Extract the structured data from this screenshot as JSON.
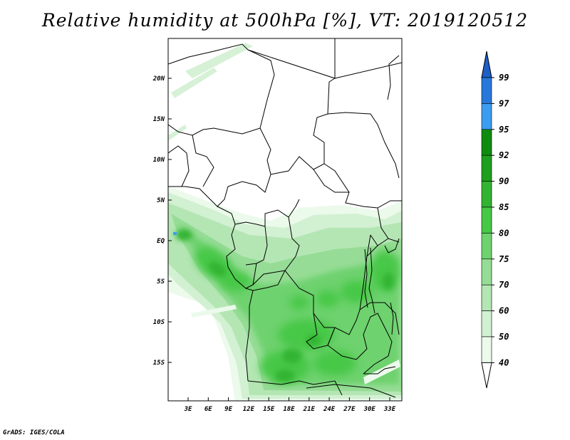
{
  "title": "Relative humidity at 500hPa [%], VT: 2019120512",
  "footer": "GrADS: IGES/COLA",
  "map": {
    "lat_labels": [
      "20N",
      "15N",
      "10N",
      "5N",
      "EQ",
      "5S",
      "10S",
      "15S"
    ],
    "lon_labels": [
      "3E",
      "6E",
      "9E",
      "12E",
      "15E",
      "18E",
      "21E",
      "24E",
      "27E",
      "30E",
      "33E"
    ]
  },
  "colorbar": {
    "labels": [
      "99",
      "97",
      "95",
      "92",
      "90",
      "85",
      "80",
      "75",
      "70",
      "60",
      "50",
      "40"
    ],
    "colors": {
      "above_99": "#1e5fc8",
      "97_99": "#2878dc",
      "95_97": "#3c9cf0",
      "92_95": "#0f8c0f",
      "90_92": "#1ea01e",
      "85_90": "#32b432",
      "80_85": "#46c846",
      "75_80": "#6ed26e",
      "70_75": "#96dc96",
      "60_70": "#b4e6b4",
      "50_60": "#d2f0d2",
      "40_50": "#ebfaeb",
      "below_40": "#ffffff"
    }
  }
}
